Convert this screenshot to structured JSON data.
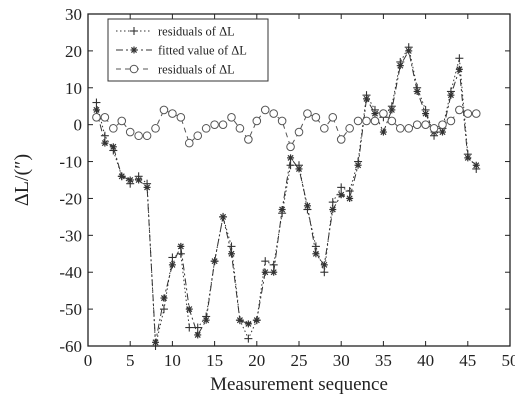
{
  "chart_data": {
    "type": "line",
    "xlabel": "Measurement sequence",
    "ylabel": "ΔL/(″)",
    "xlim": [
      0,
      50
    ],
    "ylim": [
      -60,
      30
    ],
    "xticks": [
      "0",
      "5",
      "10",
      "15",
      "20",
      "25",
      "30",
      "35",
      "40",
      "45",
      "50"
    ],
    "yticks": [
      "30",
      "20",
      "10",
      "0",
      "-10",
      "-20",
      "-30",
      "-40",
      "-50",
      "-60"
    ],
    "legend_position": "top-left",
    "series": [
      {
        "name": "residuals of ΔL",
        "style": "dotted-plus",
        "color": "#333333",
        "x": [
          1,
          2,
          3,
          4,
          5,
          6,
          7,
          8,
          9,
          10,
          11,
          12,
          13,
          14,
          15,
          16,
          17,
          18,
          19,
          20,
          21,
          22,
          23,
          24,
          25,
          26,
          27,
          28,
          29,
          30,
          31,
          32,
          33,
          34,
          35,
          36,
          37,
          38,
          39,
          40,
          41,
          42,
          43,
          44,
          45,
          46
        ],
        "y": [
          6,
          -3,
          -7,
          -14,
          -16,
          -14,
          -16,
          -60,
          -50,
          -36,
          -35,
          -55,
          -55,
          -52,
          -37,
          -25,
          -33,
          -53,
          -58,
          -53,
          -37,
          -38,
          -24,
          -11,
          -11,
          -23,
          -33,
          -40,
          -21,
          -17,
          -18,
          -10,
          8,
          4,
          2,
          5,
          17,
          21,
          10,
          4,
          -3,
          -1,
          9,
          18,
          -8,
          -12
        ]
      },
      {
        "name": "fitted value of ΔL",
        "style": "dashdot-star",
        "color": "#333333",
        "x": [
          1,
          2,
          3,
          4,
          5,
          6,
          7,
          8,
          9,
          10,
          11,
          12,
          13,
          14,
          15,
          16,
          17,
          18,
          19,
          20,
          21,
          22,
          23,
          24,
          25,
          26,
          27,
          28,
          29,
          30,
          31,
          32,
          33,
          34,
          35,
          36,
          37,
          38,
          39,
          40,
          41,
          42,
          43,
          44,
          45,
          46
        ],
        "y": [
          4,
          -5,
          -6,
          -14,
          -15,
          -15,
          -17,
          -59,
          -47,
          -38,
          -33,
          -50,
          -57,
          -53,
          -37,
          -25,
          -35,
          -53,
          -54,
          -53,
          -40,
          -40,
          -23,
          -9,
          -12,
          -22,
          -35,
          -38,
          -23,
          -19,
          -20,
          -11,
          7,
          3,
          -2,
          4,
          16,
          20,
          9,
          3,
          -2,
          -2,
          8,
          15,
          -9,
          -11
        ]
      },
      {
        "name": "residuals of ΔL",
        "style": "dashed-circle",
        "color": "#555555",
        "x": [
          1,
          2,
          3,
          4,
          5,
          6,
          7,
          8,
          9,
          10,
          11,
          12,
          13,
          14,
          15,
          16,
          17,
          18,
          19,
          20,
          21,
          22,
          23,
          24,
          25,
          26,
          27,
          28,
          29,
          30,
          31,
          32,
          33,
          34,
          35,
          36,
          37,
          38,
          39,
          40,
          41,
          42,
          43,
          44,
          45,
          46
        ],
        "y": [
          2,
          2,
          -1,
          1,
          -2,
          -3,
          -3,
          -1,
          4,
          3,
          2,
          -5,
          -3,
          -1,
          0,
          0,
          2,
          -1,
          -4,
          1,
          4,
          3,
          1,
          -6,
          -2,
          3,
          2,
          -1,
          2,
          -4,
          -1,
          1,
          1,
          1,
          3,
          1,
          -1,
          -1,
          0,
          0,
          -1,
          0,
          1,
          4,
          3,
          3
        ]
      }
    ]
  }
}
